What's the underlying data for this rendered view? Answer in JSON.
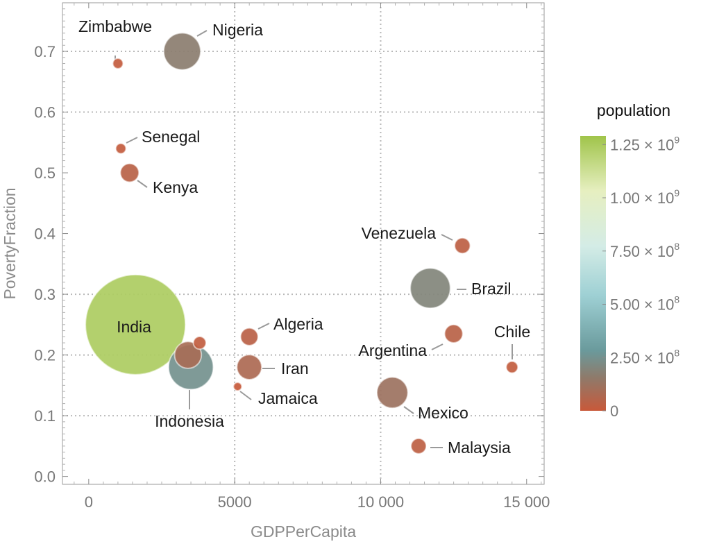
{
  "chart_data": {
    "type": "scatter",
    "subtype": "bubble",
    "xlabel": "GDPPerCapita",
    "ylabel": "PovertyFraction",
    "xlim": [
      -900,
      15600
    ],
    "ylim": [
      -0.013,
      0.78
    ],
    "x_ticks": [
      {
        "value": 0,
        "label": "0"
      },
      {
        "value": 5000,
        "label": "5000"
      },
      {
        "value": 10000,
        "label": "10 000"
      },
      {
        "value": 15000,
        "label": "15 000"
      }
    ],
    "y_ticks": [
      {
        "value": 0.0,
        "label": "0.0"
      },
      {
        "value": 0.1,
        "label": "0.1"
      },
      {
        "value": 0.2,
        "label": "0.2"
      },
      {
        "value": 0.3,
        "label": "0.3"
      },
      {
        "value": 0.4,
        "label": "0.4"
      },
      {
        "value": 0.5,
        "label": "0.5"
      },
      {
        "value": 0.6,
        "label": "0.6"
      },
      {
        "value": 0.7,
        "label": "0.7"
      }
    ],
    "grid": "dotted at 0.1, 0.2, 0.3, 0.6, 0.7 and x = 5000, 10000",
    "size_and_color_encode": "population",
    "points": [
      {
        "label": "Zimbabwe",
        "x": 1000,
        "y": 0.68,
        "population": 13000000
      },
      {
        "label": "Nigeria",
        "x": 3200,
        "y": 0.7,
        "population": 170000000
      },
      {
        "label": "Senegal",
        "x": 1100,
        "y": 0.54,
        "population": 13000000
      },
      {
        "label": "Kenya",
        "x": 1400,
        "y": 0.5,
        "population": 43000000
      },
      {
        "label": "Venezuela",
        "x": 12800,
        "y": 0.38,
        "population": 30000000
      },
      {
        "label": "Brazil",
        "x": 11700,
        "y": 0.31,
        "population": 200000000
      },
      {
        "label": "India",
        "x": 1600,
        "y": 0.25,
        "population": 1250000000
      },
      {
        "label": "Algeria",
        "x": 5500,
        "y": 0.23,
        "population": 38000000
      },
      {
        "label": "Chile",
        "x": 14500,
        "y": 0.18,
        "population": 17000000
      },
      {
        "label": "Argentina",
        "x": 12500,
        "y": 0.235,
        "population": 41000000
      },
      {
        "label": "Iran",
        "x": 5500,
        "y": 0.18,
        "population": 77000000
      },
      {
        "label": "Jamaica",
        "x": 5100,
        "y": 0.148,
        "population": 2700000
      },
      {
        "label": "Indonesia",
        "x": 3500,
        "y": 0.18,
        "population": 250000000
      },
      {
        "label": "Mexico",
        "x": 10400,
        "y": 0.138,
        "population": 120000000
      },
      {
        "label": "Malaysia",
        "x": 11300,
        "y": 0.05,
        "population": 29000000
      },
      {
        "label": "",
        "x": 3800,
        "y": 0.22,
        "population": 20000000
      },
      {
        "label": "",
        "x": 3400,
        "y": 0.2,
        "population": 90000000
      }
    ],
    "legend": {
      "title": "population",
      "position": "right",
      "type": "color gradient",
      "gradient_colors": [
        "#c8593a",
        "#6a9a9c",
        "#b8e0e0",
        "#e9f0c0",
        "#a0c44a"
      ],
      "ticks": [
        {
          "value": 1250000000,
          "mantissa": "1.25",
          "exp": "9"
        },
        {
          "value": 1000000000,
          "mantissa": "1.00",
          "exp": "9"
        },
        {
          "value": 750000000,
          "mantissa": "7.50",
          "exp": "8"
        },
        {
          "value": 500000000,
          "mantissa": "5.00",
          "exp": "8"
        },
        {
          "value": 250000000,
          "mantissa": "2.50",
          "exp": "8"
        },
        {
          "value": 0,
          "mantissa": "0",
          "exp": ""
        }
      ]
    }
  }
}
